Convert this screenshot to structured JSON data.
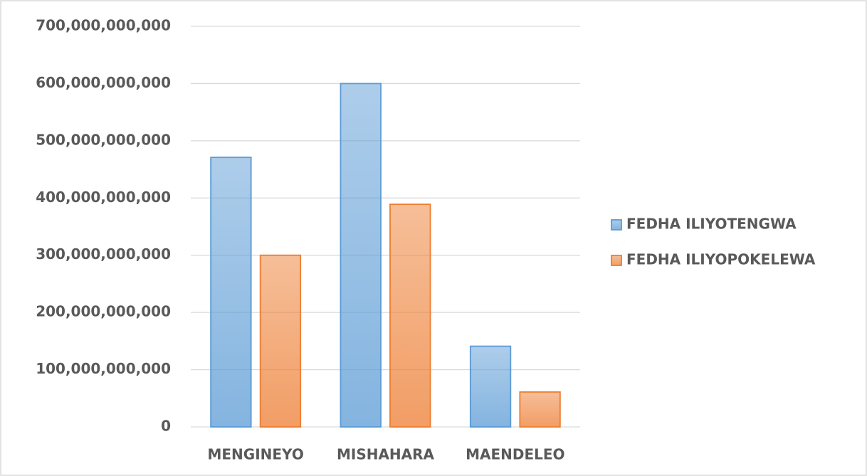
{
  "chart_data": {
    "type": "bar",
    "categories": [
      "MENGINEYO",
      "MISHAHARA",
      "MAENDELEO"
    ],
    "series": [
      {
        "name": "FEDHA ILIYOTENGWA",
        "color": "#5b9bd5",
        "values": [
          471000000000,
          600000000000,
          141000000000
        ]
      },
      {
        "name": "FEDHA ILIYOPOKELEWA",
        "color": "#ed7d31",
        "values": [
          300000000000,
          389000000000,
          61000000000
        ]
      }
    ],
    "ylim": [
      0,
      700000000000
    ],
    "yticks": [
      0,
      {
        "value": 100000000000,
        "label": "100,000,000,000"
      },
      {
        "value": 200000000000,
        "label": "200,000,000,000"
      },
      {
        "value": 300000000000,
        "label": "300,000,000,000"
      },
      {
        "value": 400000000000,
        "label": "400,000,000,000"
      },
      {
        "value": 500000000000,
        "label": "500,000,000,000"
      },
      {
        "value": 600000000000,
        "label": "600,000,000,000"
      },
      {
        "value": 700000000000,
        "label": "700,000,000,000"
      }
    ],
    "grid": true,
    "legend": "right"
  }
}
